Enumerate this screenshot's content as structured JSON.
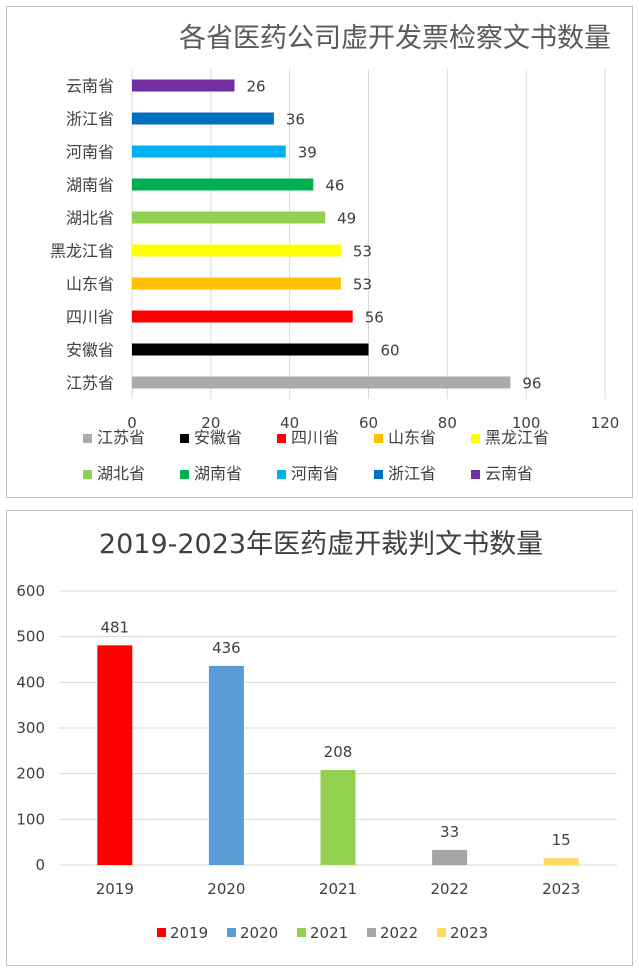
{
  "charts": [
    {
      "type": "bar",
      "orientation": "horizontal",
      "title": "各省医药公司虚开发票检察文书数量",
      "categories": [
        "云南省",
        "浙江省",
        "河南省",
        "湖南省",
        "湖北省",
        "黑龙江省",
        "山东省",
        "四川省",
        "安徽省",
        "江苏省"
      ],
      "values": [
        26,
        36,
        39,
        46,
        49,
        53,
        53,
        56,
        60,
        96
      ],
      "colors": [
        "#7030A0",
        "#0070C0",
        "#00B0F0",
        "#00B050",
        "#92D050",
        "#FFFF00",
        "#FFC000",
        "#FF0000",
        "#000000",
        "#AEAAAA"
      ],
      "xlim": [
        0,
        120
      ],
      "xticks": [
        0,
        20,
        40,
        60,
        80,
        100,
        120
      ],
      "grid": "vertical",
      "legend_position": "bottom",
      "legend": [
        {
          "label": "江苏省",
          "color": "#AEAAAA"
        },
        {
          "label": "安徽省",
          "color": "#000000"
        },
        {
          "label": "四川省",
          "color": "#FF0000"
        },
        {
          "label": "山东省",
          "color": "#FFC000"
        },
        {
          "label": "黑龙江省",
          "color": "#FFFF00"
        },
        {
          "label": "湖北省",
          "color": "#92D050"
        },
        {
          "label": "湖南省",
          "color": "#00B050"
        },
        {
          "label": "河南省",
          "color": "#00B0F0"
        },
        {
          "label": "浙江省",
          "color": "#0070C0"
        },
        {
          "label": "云南省",
          "color": "#7030A0"
        }
      ]
    },
    {
      "type": "bar",
      "orientation": "vertical",
      "title": "2019-2023年医药虚开裁判文书数量",
      "categories": [
        "2019",
        "2020",
        "2021",
        "2022",
        "2023"
      ],
      "values": [
        481,
        436,
        208,
        33,
        15
      ],
      "colors": [
        "#FF0000",
        "#5B9BD5",
        "#92D050",
        "#A5A5A5",
        "#FFD966"
      ],
      "ylim": [
        0,
        600
      ],
      "yticks": [
        0,
        100,
        200,
        300,
        400,
        500,
        600
      ],
      "grid": "horizontal",
      "legend_position": "bottom",
      "legend": [
        {
          "label": "2019",
          "color": "#FF0000"
        },
        {
          "label": "2020",
          "color": "#5B9BD5"
        },
        {
          "label": "2021",
          "color": "#92D050"
        },
        {
          "label": "2022",
          "color": "#A5A5A5"
        },
        {
          "label": "2023",
          "color": "#FFD966"
        }
      ]
    }
  ]
}
